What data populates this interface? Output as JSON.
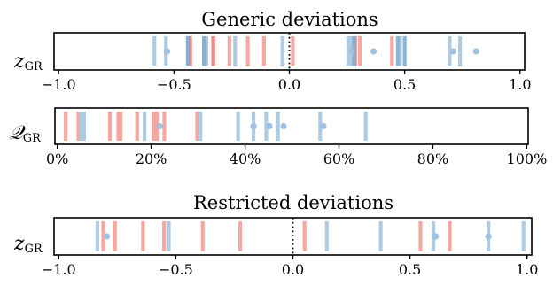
{
  "chart_data": [
    {
      "type": "strip",
      "title": "Generic deviations",
      "ylabel": "z",
      "ylabel_sub": "GR",
      "xlim": [
        -1.02,
        1.02
      ],
      "xticks": [
        -1.0,
        -0.5,
        0.0,
        0.5,
        1.0
      ],
      "xtick_labels": [
        "−1.0",
        "−0.5",
        "0.0",
        "0.5",
        "1.0"
      ],
      "reference_line": 0.0,
      "reference_style": "dotted",
      "grid": false,
      "series": [
        {
          "color": "#f4a09a",
          "values": [
            -0.44,
            -0.37,
            -0.33,
            -0.26,
            -0.18,
            -0.11,
            0.015,
            0.305,
            0.445
          ]
        },
        {
          "color": "#f08080",
          "values": [
            -0.43,
            -0.36,
            -0.33,
            0.285
          ]
        },
        {
          "color": "#a7c7e0",
          "values": [
            -0.585,
            -0.535,
            -0.36,
            -0.235,
            -0.03,
            0.255,
            0.27,
            0.48,
            0.695,
            0.74
          ]
        },
        {
          "color": "#7fb0d2",
          "values": [
            -0.44,
            -0.37,
            0.28,
            0.47,
            0.5
          ]
        }
      ],
      "markers": {
        "color": "#9ec2df",
        "values": [
          -0.53,
          0.27,
          0.365,
          0.71,
          0.81
        ]
      }
    },
    {
      "type": "strip",
      "title": "",
      "ylabel": "𝒬",
      "ylabel_sub": "GR",
      "xlim": [
        -0.005,
        1.003
      ],
      "xticks": [
        0.0,
        0.2,
        0.4,
        0.6,
        0.8,
        1.0
      ],
      "xtick_labels": [
        "0%",
        "20%",
        "40%",
        "60%",
        "80%",
        "100%"
      ],
      "grid": false,
      "series": [
        {
          "color": "#f4a09a",
          "values": [
            0.018,
            0.045,
            0.112,
            0.13,
            0.135,
            0.17,
            0.205,
            0.212,
            0.228,
            0.298
          ]
        },
        {
          "color": "#a7c7e0",
          "values": [
            0.05,
            0.057,
            0.186,
            0.305,
            0.385,
            0.418,
            0.445,
            0.47,
            0.56,
            0.657
          ]
        }
      ],
      "markers": {
        "color": "#9ec2df",
        "values": [
          0.218,
          0.418,
          0.452,
          0.482,
          0.567
        ]
      }
    },
    {
      "type": "strip",
      "title": "Restricted deviations",
      "ylabel": "z",
      "ylabel_sub": "GR",
      "xlim": [
        -1.02,
        1.02
      ],
      "xticks": [
        -1.0,
        -0.5,
        0.0,
        0.5,
        1.0
      ],
      "xtick_labels": [
        "−1.0",
        "−0.5",
        "0.0",
        "0.5",
        "1.0"
      ],
      "reference_line": 0.0,
      "reference_style": "dotted",
      "grid": false,
      "series": [
        {
          "color": "#f4a09a",
          "values": [
            -0.81,
            -0.76,
            -0.64,
            -0.55,
            -0.385,
            -0.225,
            0.05,
            0.545,
            0.67
          ]
        },
        {
          "color": "#a7c7e0",
          "values": [
            -0.835,
            -0.53,
            0.145,
            0.375,
            0.6,
            0.835,
            0.985
          ]
        }
      ],
      "markers": {
        "color": "#9ec2df",
        "values": [
          -0.795,
          0.61,
          0.835
        ]
      }
    }
  ]
}
